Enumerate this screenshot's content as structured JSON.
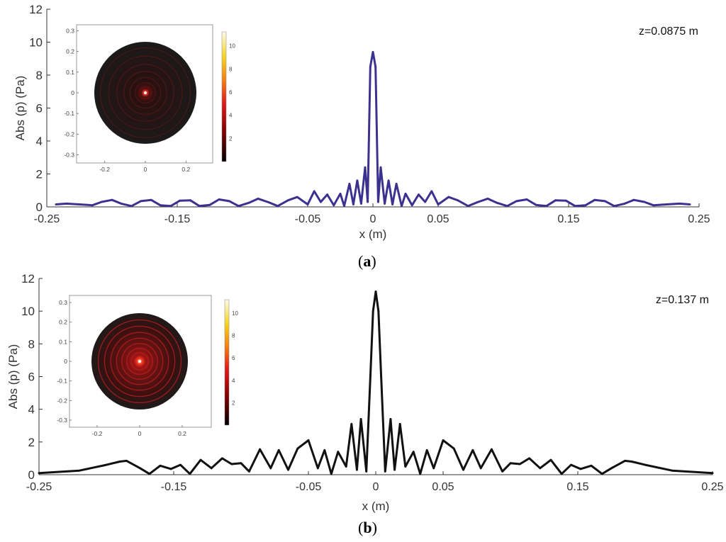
{
  "chart_data": [
    {
      "type": "line",
      "panel": "a",
      "caption_open": "(",
      "caption_letter": "a",
      "caption_close": ")",
      "annotation": "z=0.0875 m",
      "xlabel": "x (m)",
      "ylabel": "Abs (p) (Pa)",
      "xlim": [
        -0.25,
        0.25
      ],
      "ylim": [
        0,
        12
      ],
      "xticks": [
        -0.25,
        -0.15,
        -0.05,
        0,
        0.05,
        0.15,
        0.25
      ],
      "xtick_labels": [
        "-0.25",
        "-0.15",
        "-0.05",
        "0",
        "0.05",
        "0.15",
        "0.25"
      ],
      "yticks": [
        0,
        2,
        4,
        6,
        8,
        10,
        12
      ],
      "ytick_labels": [
        "0",
        "2",
        "4",
        "6",
        "8",
        "10",
        "12"
      ],
      "color": "#3d3190",
      "series": [
        {
          "x": [
            -0.243,
            -0.235,
            -0.225,
            -0.215,
            -0.208,
            -0.2,
            -0.193,
            -0.185,
            -0.178,
            -0.17,
            -0.163,
            -0.155,
            -0.148,
            -0.14,
            -0.133,
            -0.125,
            -0.118,
            -0.11,
            -0.103,
            -0.095,
            -0.088,
            -0.08,
            -0.073,
            -0.065,
            -0.058,
            -0.05,
            -0.045,
            -0.04,
            -0.035,
            -0.03,
            -0.025,
            -0.022,
            -0.018,
            -0.015,
            -0.012,
            -0.009,
            -0.006,
            -0.004,
            -0.002,
            0.0,
            0.002,
            0.004,
            0.006,
            0.009,
            0.012,
            0.015,
            0.018,
            0.022,
            0.025,
            0.03,
            0.035,
            0.04,
            0.045,
            0.05,
            0.058,
            0.065,
            0.073,
            0.08,
            0.088,
            0.095,
            0.103,
            0.11,
            0.118,
            0.125,
            0.133,
            0.14,
            0.148,
            0.155,
            0.163,
            0.17,
            0.178,
            0.185,
            0.193,
            0.2,
            0.208,
            0.215,
            0.225,
            0.235,
            0.243
          ],
          "y": [
            0.15,
            0.2,
            0.15,
            0.1,
            0.3,
            0.42,
            0.2,
            0.05,
            0.35,
            0.42,
            0.1,
            0.05,
            0.38,
            0.4,
            0.05,
            0.12,
            0.45,
            0.35,
            0.05,
            0.25,
            0.5,
            0.28,
            0.05,
            0.4,
            0.6,
            0.15,
            0.95,
            0.3,
            0.75,
            0.1,
            0.8,
            0.05,
            1.4,
            0.15,
            1.6,
            0.2,
            2.4,
            0.3,
            8.5,
            9.4,
            8.5,
            0.3,
            2.4,
            0.2,
            1.6,
            0.15,
            1.4,
            0.05,
            0.8,
            0.1,
            0.75,
            0.3,
            0.95,
            0.15,
            0.6,
            0.4,
            0.05,
            0.28,
            0.5,
            0.25,
            0.05,
            0.35,
            0.45,
            0.12,
            0.05,
            0.4,
            0.38,
            0.05,
            0.1,
            0.42,
            0.35,
            0.05,
            0.2,
            0.42,
            0.3,
            0.1,
            0.15,
            0.2,
            0.15
          ]
        }
      ],
      "inset": {
        "ticks": [
          -0.3,
          -0.2,
          -0.1,
          0,
          0.1,
          0.2,
          0.3
        ],
        "ytick_labels": [
          "0.3",
          "0.2",
          "0.1",
          "0",
          "-0.1",
          "-0.2",
          "-0.3"
        ],
        "xtick_labels": [
          "-0.2",
          "0",
          "0.2"
        ],
        "colorbar_ticks": [
          "10",
          "8",
          "6",
          "4",
          "2"
        ],
        "colorbar_values": [
          10,
          8,
          6,
          4,
          2
        ],
        "colorbar_max": 11.2
      }
    },
    {
      "type": "line",
      "panel": "b",
      "caption_open": "(",
      "caption_letter": "b",
      "caption_close": ")",
      "annotation": "z=0.137 m",
      "xlabel": "x (m)",
      "ylabel": "Abs (p) (Pa)",
      "xlim": [
        -0.25,
        0.25
      ],
      "ylim": [
        0,
        12
      ],
      "xticks": [
        -0.25,
        -0.15,
        -0.05,
        0,
        0.05,
        0.15,
        0.25
      ],
      "xtick_labels": [
        "-0.25",
        "-0.15",
        "-0.05",
        "0",
        "0.05",
        "0.15",
        "0.25"
      ],
      "yticks": [
        0,
        2,
        4,
        6,
        8,
        10,
        12
      ],
      "ytick_labels": [
        "0",
        "2",
        "4",
        "6",
        "8",
        "10",
        "12"
      ],
      "color": "#111111",
      "series": [
        {
          "x": [
            -0.25,
            -0.22,
            -0.2,
            -0.19,
            -0.185,
            -0.175,
            -0.168,
            -0.16,
            -0.152,
            -0.145,
            -0.138,
            -0.13,
            -0.122,
            -0.114,
            -0.107,
            -0.1,
            -0.094,
            -0.086,
            -0.078,
            -0.072,
            -0.065,
            -0.058,
            -0.05,
            -0.043,
            -0.038,
            -0.033,
            -0.028,
            -0.022,
            -0.018,
            -0.014,
            -0.011,
            -0.007,
            -0.004,
            -0.002,
            0.0,
            0.002,
            0.004,
            0.007,
            0.011,
            0.014,
            0.018,
            0.022,
            0.028,
            0.033,
            0.038,
            0.043,
            0.05,
            0.058,
            0.065,
            0.072,
            0.078,
            0.086,
            0.094,
            0.1,
            0.107,
            0.114,
            0.122,
            0.13,
            0.138,
            0.145,
            0.152,
            0.16,
            0.168,
            0.175,
            0.185,
            0.19,
            0.2,
            0.22,
            0.25
          ],
          "y": [
            0.1,
            0.25,
            0.6,
            0.8,
            0.85,
            0.4,
            0.05,
            0.55,
            0.35,
            0.6,
            0.05,
            0.9,
            0.4,
            1.0,
            0.65,
            0.7,
            0.2,
            1.55,
            0.4,
            1.5,
            0.3,
            1.6,
            2.1,
            0.4,
            1.5,
            0.05,
            1.4,
            0.5,
            3.1,
            0.3,
            3.4,
            0.2,
            6.0,
            10.0,
            11.2,
            10.0,
            6.0,
            0.2,
            3.4,
            0.3,
            3.1,
            0.5,
            1.4,
            0.05,
            1.5,
            0.4,
            2.1,
            1.6,
            0.3,
            1.5,
            0.4,
            1.55,
            0.2,
            0.7,
            0.65,
            1.0,
            0.4,
            0.9,
            0.05,
            0.6,
            0.35,
            0.55,
            0.05,
            0.4,
            0.85,
            0.8,
            0.6,
            0.25,
            0.1
          ]
        }
      ],
      "inset": {
        "ticks": [
          -0.3,
          -0.2,
          -0.1,
          0,
          0.1,
          0.2,
          0.3
        ],
        "ytick_labels": [
          "0.3",
          "0.2",
          "0.1",
          "0",
          "-0.1",
          "-0.2",
          "-0.3"
        ],
        "xtick_labels": [
          "-0.2",
          "0",
          "0.2"
        ],
        "colorbar_ticks": [
          "10",
          "8",
          "6",
          "4",
          "2"
        ],
        "colorbar_values": [
          10,
          8,
          6,
          4,
          2
        ],
        "colorbar_max": 11.2
      }
    }
  ]
}
